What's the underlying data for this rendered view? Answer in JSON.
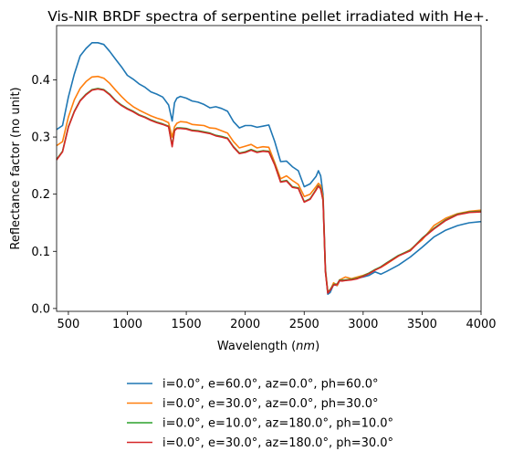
{
  "chart_data": {
    "type": "line",
    "title": "Vis-NIR BRDF spectra of serpentine pellet irradiated with He+.",
    "xlabel_main": "Wavelength (",
    "xlabel_unit": "nm",
    "xlabel_close": ")",
    "ylabel": "Reflectance factor (no unit)",
    "xlim": [
      400,
      4000
    ],
    "ylim": [
      -0.005,
      0.495
    ],
    "xticks": [
      500,
      1000,
      1500,
      2000,
      2500,
      3000,
      3500,
      4000
    ],
    "yticks": [
      0.0,
      0.1,
      0.2,
      0.3,
      0.4
    ],
    "grid": false,
    "legend_position": "below plot",
    "series": [
      {
        "name": "i=0.0°, e=60.0°, az=0.0°, ph=60.0°",
        "color": "#1f77b4",
        "x": [
          400,
          450,
          500,
          550,
          600,
          650,
          700,
          750,
          800,
          850,
          900,
          950,
          1000,
          1050,
          1100,
          1150,
          1200,
          1250,
          1300,
          1350,
          1380,
          1400,
          1420,
          1450,
          1500,
          1550,
          1600,
          1650,
          1700,
          1750,
          1800,
          1850,
          1900,
          1950,
          2000,
          2050,
          2100,
          2150,
          2200,
          2250,
          2300,
          2350,
          2400,
          2450,
          2500,
          2550,
          2600,
          2620,
          2640,
          2660,
          2680,
          2700,
          2720,
          2750,
          2780,
          2800,
          2820,
          2850,
          2900,
          2950,
          3000,
          3050,
          3100,
          3150,
          3200,
          3300,
          3400,
          3500,
          3600,
          3700,
          3800,
          3900,
          4000
        ],
        "y": [
          0.313,
          0.32,
          0.37,
          0.41,
          0.442,
          0.455,
          0.465,
          0.465,
          0.462,
          0.45,
          0.436,
          0.423,
          0.408,
          0.401,
          0.393,
          0.387,
          0.379,
          0.375,
          0.37,
          0.356,
          0.328,
          0.36,
          0.368,
          0.371,
          0.368,
          0.363,
          0.361,
          0.357,
          0.351,
          0.353,
          0.35,
          0.345,
          0.327,
          0.316,
          0.32,
          0.32,
          0.317,
          0.319,
          0.321,
          0.292,
          0.257,
          0.258,
          0.248,
          0.241,
          0.213,
          0.218,
          0.231,
          0.241,
          0.232,
          0.2,
          0.07,
          0.025,
          0.028,
          0.042,
          0.04,
          0.048,
          0.05,
          0.049,
          0.051,
          0.053,
          0.055,
          0.058,
          0.064,
          0.06,
          0.065,
          0.076,
          0.09,
          0.107,
          0.125,
          0.137,
          0.145,
          0.15,
          0.152
        ]
      },
      {
        "name": "i=0.0°, e=30.0°, az=0.0°, ph=30.0°",
        "color": "#ff7f0e",
        "x": [
          400,
          450,
          500,
          550,
          600,
          650,
          700,
          750,
          800,
          850,
          900,
          950,
          1000,
          1050,
          1100,
          1150,
          1200,
          1250,
          1300,
          1350,
          1380,
          1400,
          1420,
          1450,
          1500,
          1550,
          1600,
          1650,
          1700,
          1750,
          1800,
          1850,
          1900,
          1950,
          2000,
          2050,
          2100,
          2150,
          2200,
          2250,
          2300,
          2350,
          2400,
          2450,
          2500,
          2550,
          2600,
          2620,
          2640,
          2660,
          2680,
          2700,
          2720,
          2750,
          2780,
          2800,
          2820,
          2850,
          2900,
          2950,
          3000,
          3050,
          3100,
          3150,
          3200,
          3300,
          3400,
          3500,
          3600,
          3700,
          3800,
          3900,
          4000
        ],
        "y": [
          0.285,
          0.292,
          0.335,
          0.365,
          0.385,
          0.397,
          0.405,
          0.406,
          0.403,
          0.394,
          0.382,
          0.371,
          0.361,
          0.353,
          0.347,
          0.342,
          0.337,
          0.333,
          0.33,
          0.325,
          0.3,
          0.318,
          0.324,
          0.327,
          0.326,
          0.322,
          0.321,
          0.32,
          0.316,
          0.315,
          0.311,
          0.307,
          0.292,
          0.281,
          0.284,
          0.287,
          0.281,
          0.283,
          0.282,
          0.255,
          0.227,
          0.232,
          0.224,
          0.217,
          0.196,
          0.2,
          0.213,
          0.219,
          0.215,
          0.195,
          0.068,
          0.03,
          0.032,
          0.045,
          0.04,
          0.05,
          0.052,
          0.055,
          0.052,
          0.055,
          0.058,
          0.062,
          0.068,
          0.072,
          0.078,
          0.092,
          0.103,
          0.12,
          0.145,
          0.158,
          0.166,
          0.17,
          0.172
        ]
      },
      {
        "name": "i=0.0°, e=10.0°, az=180.0°, ph=10.0°",
        "color": "#2ca02c",
        "x": [
          400,
          450,
          500,
          550,
          600,
          650,
          700,
          750,
          800,
          850,
          900,
          950,
          1000,
          1050,
          1100,
          1150,
          1200,
          1250,
          1300,
          1350,
          1380,
          1400,
          1420,
          1450,
          1500,
          1550,
          1600,
          1650,
          1700,
          1750,
          1800,
          1850,
          1900,
          1950,
          2000,
          2050,
          2100,
          2150,
          2200,
          2250,
          2300,
          2350,
          2400,
          2450,
          2500,
          2550,
          2600,
          2620,
          2640,
          2660,
          2680,
          2700,
          2720,
          2750,
          2780,
          2800,
          2820,
          2850,
          2900,
          2950,
          3000,
          3050,
          3100,
          3150,
          3200,
          3300,
          3400,
          3500,
          3600,
          3700,
          3800,
          3900,
          4000
        ],
        "y": [
          0.261,
          0.275,
          0.318,
          0.345,
          0.364,
          0.375,
          0.383,
          0.385,
          0.383,
          0.375,
          0.364,
          0.356,
          0.35,
          0.345,
          0.339,
          0.335,
          0.33,
          0.326,
          0.323,
          0.319,
          0.285,
          0.312,
          0.316,
          0.316,
          0.315,
          0.312,
          0.311,
          0.309,
          0.307,
          0.303,
          0.301,
          0.298,
          0.283,
          0.272,
          0.274,
          0.278,
          0.274,
          0.276,
          0.275,
          0.252,
          0.222,
          0.224,
          0.213,
          0.211,
          0.187,
          0.192,
          0.208,
          0.215,
          0.21,
          0.19,
          0.065,
          0.028,
          0.033,
          0.042,
          0.043,
          0.05,
          0.049,
          0.05,
          0.051,
          0.053,
          0.057,
          0.062,
          0.068,
          0.073,
          0.08,
          0.093,
          0.102,
          0.123,
          0.14,
          0.155,
          0.165,
          0.169,
          0.17
        ]
      },
      {
        "name": "i=0.0°, e=30.0°, az=180.0°, ph=30.0°",
        "color": "#d62728",
        "x": [
          400,
          450,
          500,
          550,
          600,
          650,
          700,
          750,
          800,
          850,
          900,
          950,
          1000,
          1050,
          1100,
          1150,
          1200,
          1250,
          1300,
          1350,
          1380,
          1400,
          1420,
          1450,
          1500,
          1550,
          1600,
          1650,
          1700,
          1750,
          1800,
          1850,
          1900,
          1950,
          2000,
          2050,
          2100,
          2150,
          2200,
          2250,
          2300,
          2350,
          2400,
          2450,
          2500,
          2550,
          2600,
          2620,
          2640,
          2660,
          2680,
          2700,
          2720,
          2750,
          2780,
          2800,
          2820,
          2850,
          2900,
          2950,
          3000,
          3050,
          3100,
          3150,
          3200,
          3300,
          3400,
          3500,
          3600,
          3700,
          3800,
          3900,
          4000
        ],
        "y": [
          0.26,
          0.274,
          0.317,
          0.344,
          0.363,
          0.374,
          0.382,
          0.384,
          0.382,
          0.374,
          0.363,
          0.355,
          0.349,
          0.344,
          0.338,
          0.334,
          0.329,
          0.325,
          0.322,
          0.318,
          0.283,
          0.311,
          0.315,
          0.315,
          0.314,
          0.311,
          0.31,
          0.308,
          0.306,
          0.302,
          0.3,
          0.297,
          0.282,
          0.271,
          0.273,
          0.277,
          0.273,
          0.275,
          0.274,
          0.251,
          0.221,
          0.223,
          0.212,
          0.21,
          0.186,
          0.191,
          0.207,
          0.214,
          0.209,
          0.189,
          0.064,
          0.027,
          0.032,
          0.041,
          0.042,
          0.049,
          0.048,
          0.049,
          0.05,
          0.052,
          0.056,
          0.061,
          0.067,
          0.072,
          0.079,
          0.092,
          0.101,
          0.122,
          0.139,
          0.154,
          0.164,
          0.168,
          0.169
        ]
      }
    ]
  }
}
